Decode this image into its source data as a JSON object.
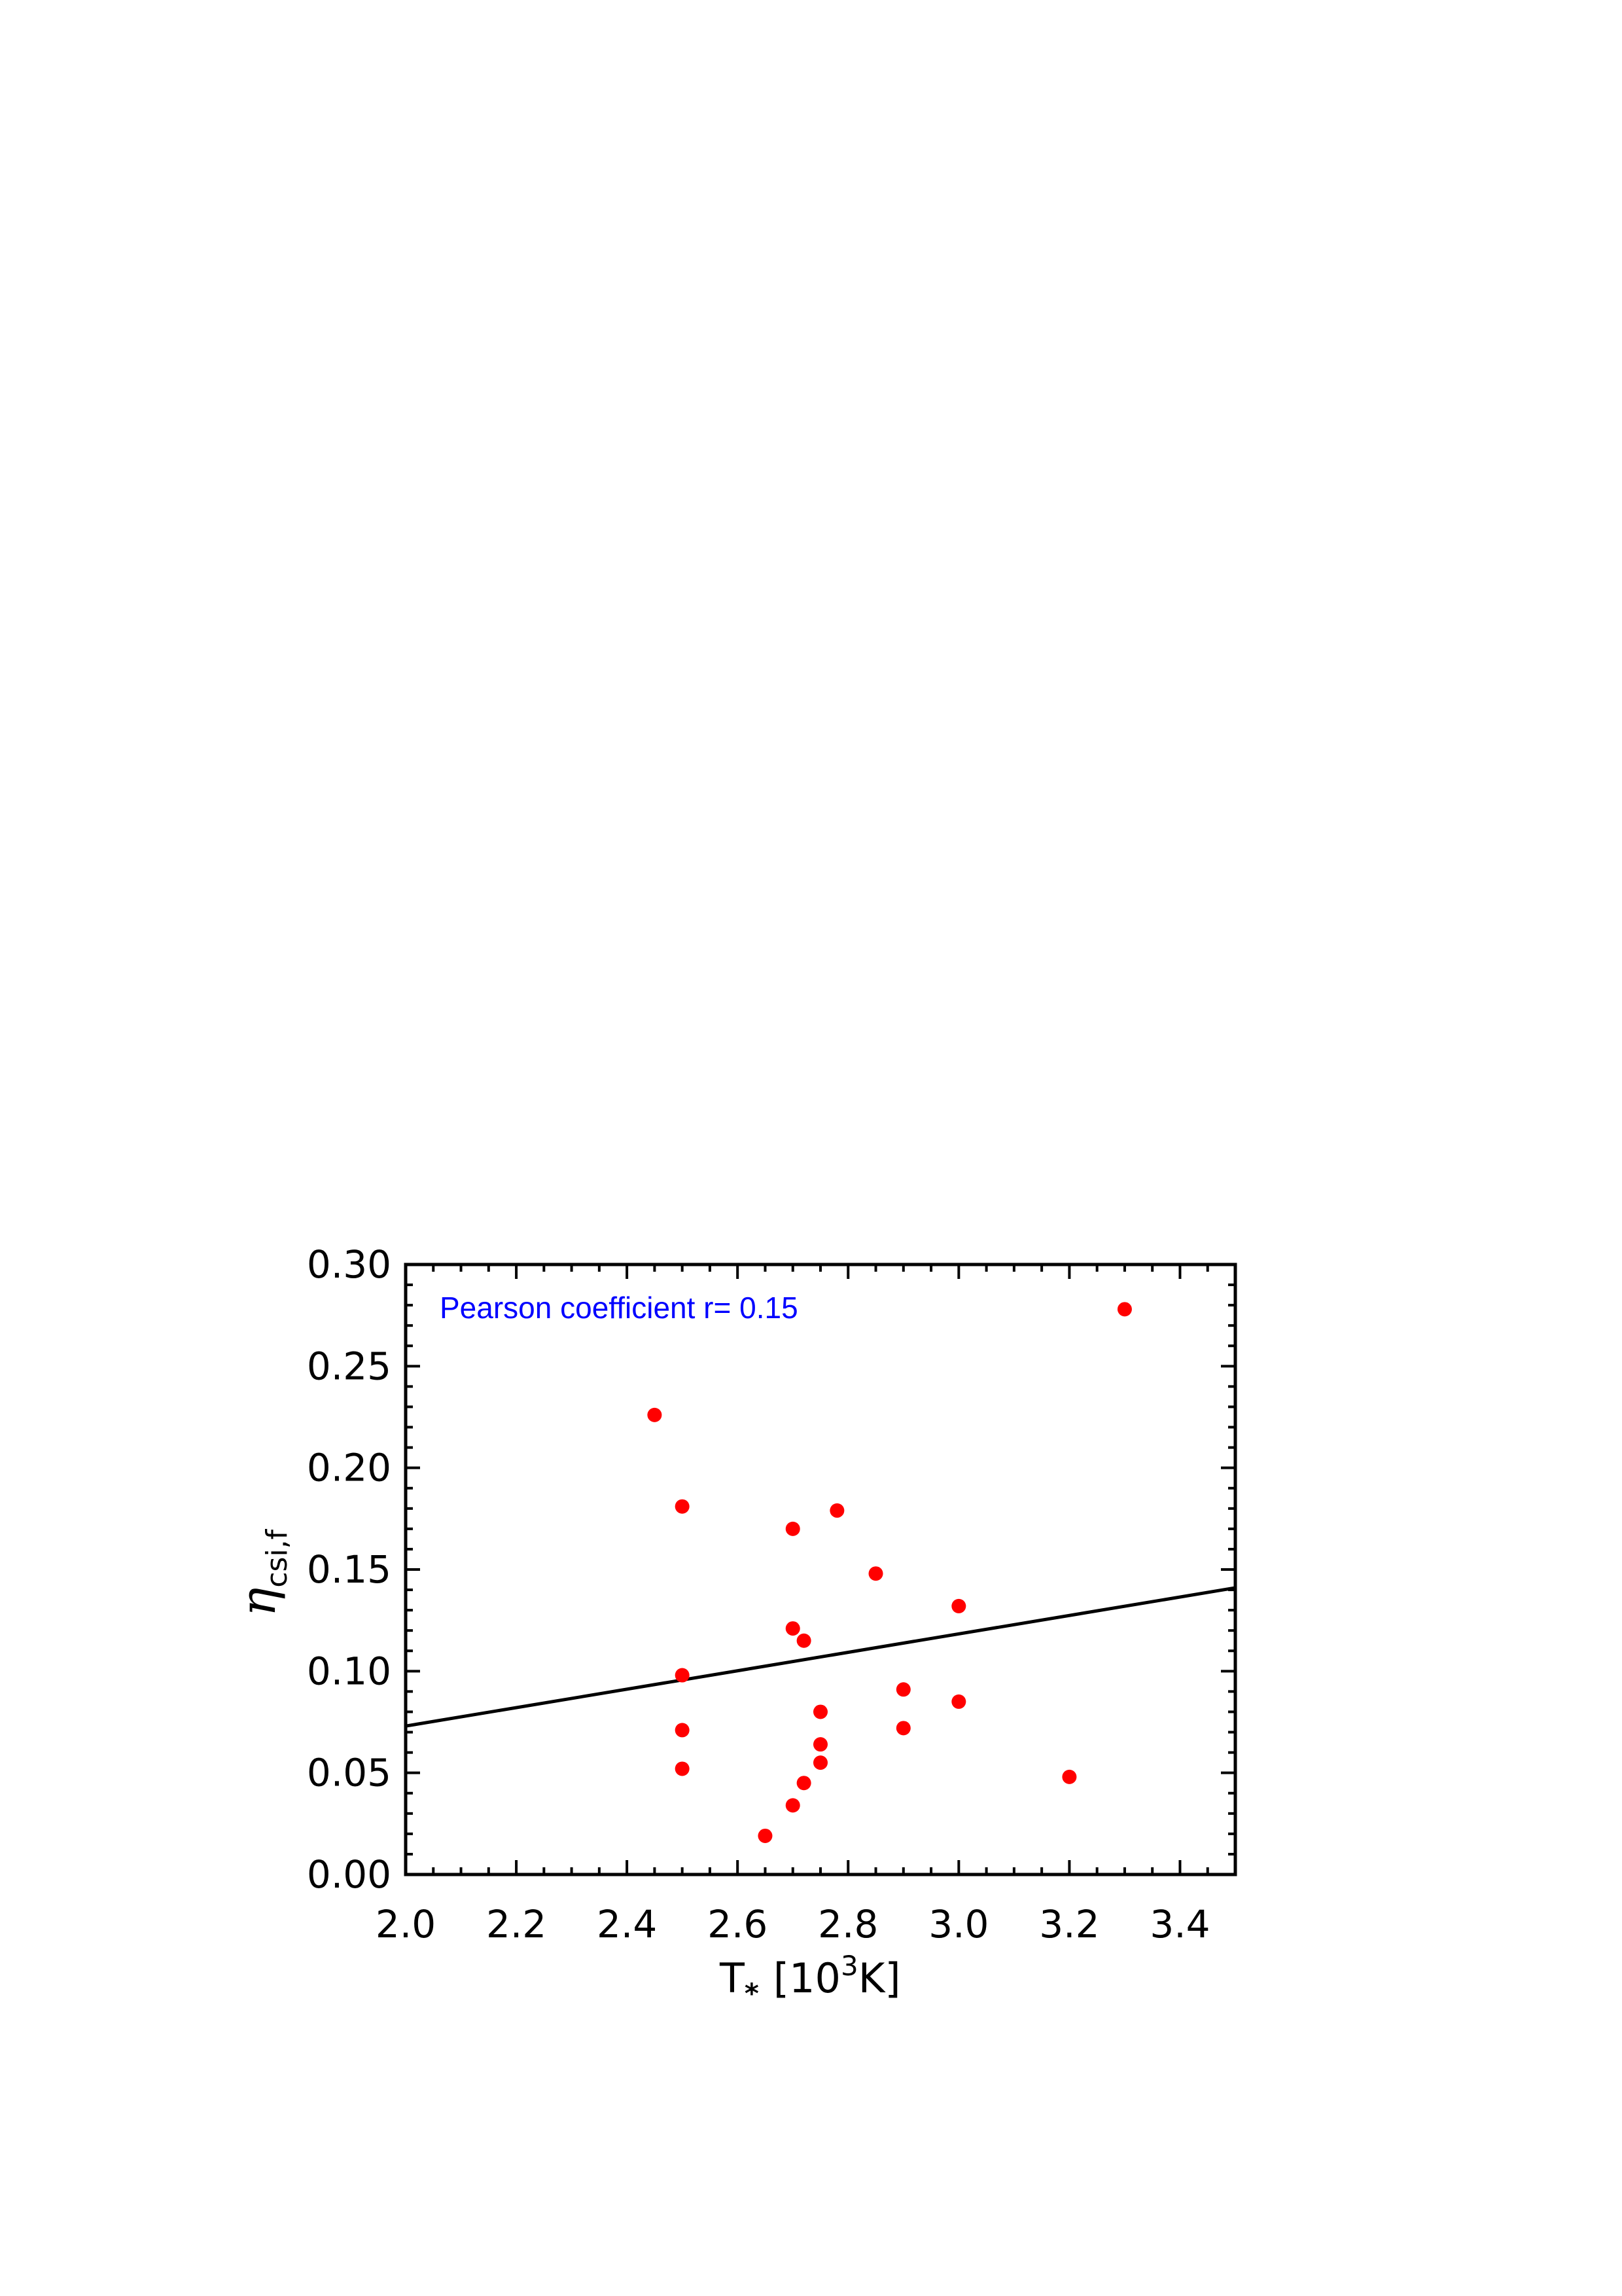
{
  "chart_data": {
    "type": "scatter",
    "title": "",
    "xlabel": {
      "main": "T",
      "subscript": "*",
      "bracket_open": "[",
      "base": "10",
      "exponent": "3",
      "unit": "K",
      "bracket_close": "]"
    },
    "ylabel": {
      "main": "η",
      "subscript": "csi,f"
    },
    "xlim": [
      2.0,
      3.5
    ],
    "ylim": [
      0.0,
      0.3
    ],
    "x_ticks": [
      "2.0",
      "2.2",
      "2.4",
      "2.6",
      "2.8",
      "3.0",
      "3.2",
      "3.4"
    ],
    "x_tick_values": [
      2.0,
      2.2,
      2.4,
      2.6,
      2.8,
      3.0,
      3.2,
      3.4
    ],
    "y_ticks": [
      "0.00",
      "0.05",
      "0.10",
      "0.15",
      "0.20",
      "0.25",
      "0.30"
    ],
    "y_tick_values": [
      0.0,
      0.05,
      0.1,
      0.15,
      0.2,
      0.25,
      0.3
    ],
    "grid": false,
    "annotation": {
      "text": "Pearson coefficient r= 0.15",
      "color": "#0000ff"
    },
    "series": [
      {
        "kind": "points",
        "color": "#ff0000",
        "points": [
          {
            "x": 2.45,
            "y": 0.226
          },
          {
            "x": 2.5,
            "y": 0.181
          },
          {
            "x": 2.5,
            "y": 0.098
          },
          {
            "x": 2.5,
            "y": 0.071
          },
          {
            "x": 2.5,
            "y": 0.052
          },
          {
            "x": 2.65,
            "y": 0.019
          },
          {
            "x": 2.7,
            "y": 0.17
          },
          {
            "x": 2.7,
            "y": 0.121
          },
          {
            "x": 2.7,
            "y": 0.034
          },
          {
            "x": 2.72,
            "y": 0.115
          },
          {
            "x": 2.72,
            "y": 0.045
          },
          {
            "x": 2.75,
            "y": 0.08
          },
          {
            "x": 2.75,
            "y": 0.064
          },
          {
            "x": 2.75,
            "y": 0.055
          },
          {
            "x": 2.78,
            "y": 0.179
          },
          {
            "x": 2.85,
            "y": 0.148
          },
          {
            "x": 2.9,
            "y": 0.091
          },
          {
            "x": 2.9,
            "y": 0.072
          },
          {
            "x": 3.0,
            "y": 0.132
          },
          {
            "x": 3.0,
            "y": 0.085
          },
          {
            "x": 3.2,
            "y": 0.048
          },
          {
            "x": 3.3,
            "y": 0.278
          }
        ]
      },
      {
        "kind": "fit-line",
        "color": "#000000",
        "x": [
          2.0,
          3.5
        ],
        "y": [
          0.073,
          0.141
        ]
      }
    ]
  }
}
